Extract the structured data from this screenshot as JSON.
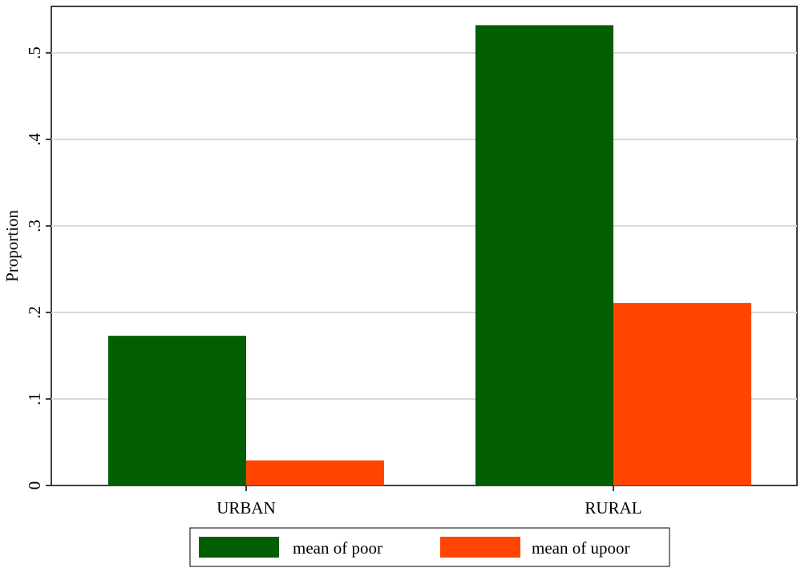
{
  "chart_data": {
    "type": "bar",
    "categories": [
      "URBAN",
      "RURAL"
    ],
    "series": [
      {
        "name": "mean of poor",
        "values": [
          0.173,
          0.532
        ],
        "color": "#025e02"
      },
      {
        "name": "mean of upoor",
        "values": [
          0.029,
          0.211
        ],
        "color": "#ff4500"
      }
    ],
    "xlabel": "",
    "ylabel": "Proportion",
    "ylim": [
      0,
      0.55
    ],
    "yticks": [
      0,
      0.1,
      0.2,
      0.3,
      0.4,
      0.5
    ],
    "ytick_labels": [
      "0",
      ".1",
      ".2",
      ".3",
      ".4",
      ".5"
    ],
    "grid": true,
    "legend_position": "bottom"
  }
}
